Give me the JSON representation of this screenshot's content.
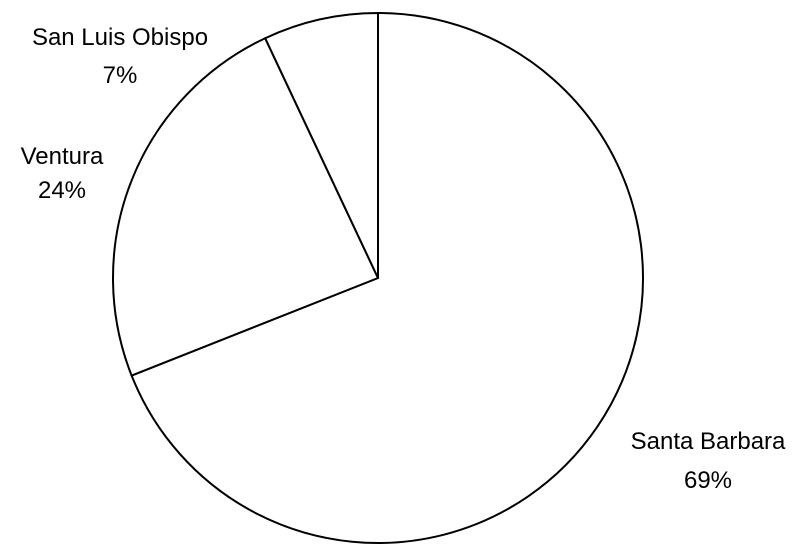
{
  "chart_data": {
    "type": "pie",
    "title": "",
    "start_angle": "12 o'clock",
    "direction": "clockwise",
    "slice_fill": "#ffffff",
    "slice_stroke": "#000000",
    "slices": [
      {
        "label": "Santa Barbara",
        "value": 69,
        "value_label": "69%"
      },
      {
        "label": "Ventura",
        "value": 24,
        "value_label": "24%"
      },
      {
        "label": "San Luis Obispo",
        "value": 7,
        "value_label": "7%"
      }
    ]
  }
}
